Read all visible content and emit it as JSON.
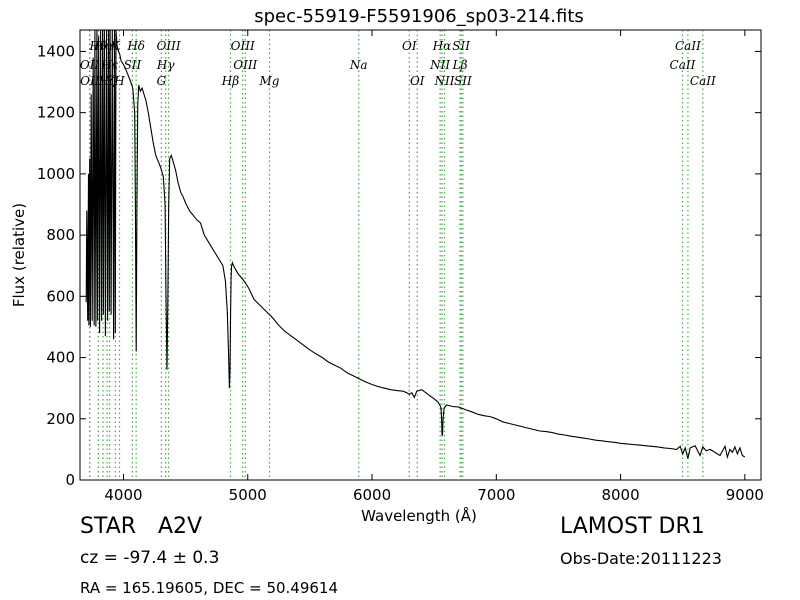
{
  "chart_data": {
    "type": "line",
    "title": "spec-55919-F5591906_sp03-214.fits",
    "xlabel": "Wavelength (Å)",
    "ylabel": "Flux (relative)",
    "xlim": [
      3650,
      9130
    ],
    "ylim": [
      0,
      1470
    ],
    "xticks": [
      4000,
      5000,
      6000,
      7000,
      8000,
      9000
    ],
    "yticks": [
      0,
      200,
      400,
      600,
      800,
      1000,
      1200,
      1400
    ],
    "grid": false,
    "line_color": "#000000",
    "marker_color": "#44aa44",
    "series": [
      {
        "x": [
          3700,
          3705,
          3712,
          3718,
          3722,
          3728,
          3734,
          3740,
          3748,
          3756,
          3764,
          3770,
          3778,
          3786,
          3792,
          3800,
          3808,
          3816,
          3824,
          3832,
          3838,
          3846,
          3854,
          3864,
          3872,
          3880,
          3886,
          3892,
          3900,
          3910,
          3920,
          3928,
          3934,
          3940,
          3948,
          3960,
          3970,
          3980,
          3995,
          4010,
          4030,
          4050,
          4075,
          4090,
          4096,
          4102,
          4108,
          4114,
          4122,
          4135,
          4150,
          4165,
          4180,
          4200,
          4220,
          4240,
          4260,
          4280,
          4300,
          4320,
          4335,
          4342,
          4350,
          4357,
          4364,
          4372,
          4385,
          4400,
          4420,
          4440,
          4460,
          4480,
          4500,
          4530,
          4560,
          4590,
          4620,
          4650,
          4680,
          4710,
          4740,
          4770,
          4800,
          4820,
          4835,
          4845,
          4852,
          4857,
          4862,
          4866,
          4870,
          4876,
          4885,
          4900,
          4920,
          4950,
          4980,
          5010,
          5050,
          5100,
          5150,
          5200,
          5250,
          5300,
          5350,
          5400,
          5450,
          5500,
          5550,
          5600,
          5650,
          5700,
          5750,
          5800,
          5850,
          5900,
          5950,
          6000,
          6050,
          6100,
          6150,
          6200,
          6250,
          6280,
          6300,
          6320,
          6340,
          6360,
          6400,
          6450,
          6500,
          6530,
          6545,
          6555,
          6560,
          6563,
          6567,
          6572,
          6580,
          6600,
          6650,
          6700,
          6750,
          6800,
          6850,
          6900,
          6950,
          7000,
          7050,
          7100,
          7150,
          7200,
          7250,
          7300,
          7350,
          7400,
          7450,
          7500,
          7550,
          7600,
          7650,
          7700,
          7750,
          7800,
          7850,
          7900,
          7950,
          8000,
          8050,
          8100,
          8150,
          8200,
          8250,
          8300,
          8350,
          8400,
          8450,
          8480,
          8500,
          8520,
          8542,
          8560,
          8600,
          8640,
          8662,
          8690,
          8720,
          8760,
          8800,
          8820,
          8840,
          8860,
          8880,
          8900,
          8920,
          8940,
          8960,
          8980,
          9000
        ],
        "y": [
          580,
          880,
          520,
          1000,
          505,
          1050,
          500,
          1260,
          520,
          1380,
          505,
          1470,
          500,
          1480,
          520,
          1450,
          480,
          1470,
          520,
          1470,
          540,
          1470,
          470,
          1470,
          520,
          1470,
          550,
          1470,
          540,
          1470,
          460,
          1470,
          480,
          1470,
          1420,
          1400,
          1390,
          1370,
          1360,
          1350,
          1330,
          1310,
          1280,
          1200,
          900,
          420,
          880,
          1220,
          1290,
          1270,
          1280,
          1260,
          1240,
          1200,
          1150,
          1100,
          1060,
          1040,
          1020,
          990,
          900,
          600,
          360,
          600,
          900,
          1050,
          1060,
          1040,
          1010,
          970,
          940,
          925,
          905,
          880,
          865,
          850,
          840,
          800,
          780,
          760,
          740,
          720,
          700,
          650,
          550,
          420,
          300,
          360,
          550,
          660,
          700,
          710,
          700,
          690,
          675,
          660,
          645,
          625,
          590,
          570,
          550,
          530,
          505,
          485,
          470,
          455,
          440,
          425,
          412,
          400,
          385,
          375,
          365,
          350,
          340,
          330,
          320,
          312,
          305,
          300,
          295,
          292,
          290,
          285,
          280,
          285,
          270,
          290,
          295,
          280,
          265,
          255,
          245,
          235,
          200,
          150,
          145,
          200,
          235,
          245,
          240,
          238,
          230,
          223,
          215,
          210,
          207,
          200,
          190,
          185,
          180,
          175,
          170,
          165,
          160,
          158,
          155,
          150,
          147,
          143,
          140,
          137,
          134,
          130,
          128,
          125,
          123,
          120,
          118,
          116,
          114,
          112,
          110,
          108,
          105,
          103,
          100,
          110,
          85,
          105,
          70,
          105,
          112,
          80,
          108,
          95,
          100,
          90,
          80,
          95,
          110,
          75,
          100,
          90,
          108,
          85,
          105,
          80,
          75
        ]
      }
    ],
    "markers": [
      {
        "label": "Hθ",
        "x": 3798,
        "row": 0
      },
      {
        "label": "Hη",
        "x": 3835,
        "row": 0
      },
      {
        "label": "K",
        "x": 3934,
        "row": 0
      },
      {
        "label": "Hδ",
        "x": 4102,
        "row": 0
      },
      {
        "label": "OIII",
        "x": 4363,
        "row": 0
      },
      {
        "label": "OIII",
        "x": 4959,
        "row": 0
      },
      {
        "label": "OI",
        "x": 6300,
        "row": 0
      },
      {
        "label": "Hα",
        "x": 6563,
        "row": 0
      },
      {
        "label": "SII",
        "x": 6717,
        "row": 0
      },
      {
        "label": "CaII",
        "x": 8542,
        "row": 0
      },
      {
        "label": "OII",
        "x": 3727,
        "row": 1
      },
      {
        "label": "Hε",
        "x": 3889,
        "row": 1
      },
      {
        "label": "SII",
        "x": 4072,
        "row": 1
      },
      {
        "label": "Hγ",
        "x": 4340,
        "row": 1
      },
      {
        "label": "OIII",
        "x": 4980,
        "row": 1
      },
      {
        "label": "Na",
        "x": 5893,
        "row": 1
      },
      {
        "label": "NII",
        "x": 6548,
        "row": 1
      },
      {
        "label": "Lβ",
        "x": 6708,
        "row": 1
      },
      {
        "label": "CaII",
        "x": 8498,
        "row": 1
      },
      {
        "label": "OII",
        "x": 3729,
        "row": 2
      },
      {
        "label": "Hζ",
        "x": 3868,
        "row": 2
      },
      {
        "label": "H",
        "x": 3968,
        "row": 2
      },
      {
        "label": "G",
        "x": 4305,
        "row": 2
      },
      {
        "label": "Hβ",
        "x": 4861,
        "row": 2
      },
      {
        "label": "Mg",
        "x": 5175,
        "row": 2
      },
      {
        "label": "OI",
        "x": 6364,
        "row": 2
      },
      {
        "label": "NII",
        "x": 6583,
        "row": 2
      },
      {
        "label": "SII",
        "x": 6731,
        "row": 2
      },
      {
        "label": "CaII",
        "x": 8662,
        "row": 2
      }
    ]
  },
  "info": {
    "object_class": "STAR",
    "subclass": "A2V",
    "survey": "LAMOST DR1",
    "cz": "cz = -97.4 ± 0.3",
    "obs_date": "Obs-Date:20111223",
    "coords": "RA = 165.19605, DEC = 50.49614"
  }
}
